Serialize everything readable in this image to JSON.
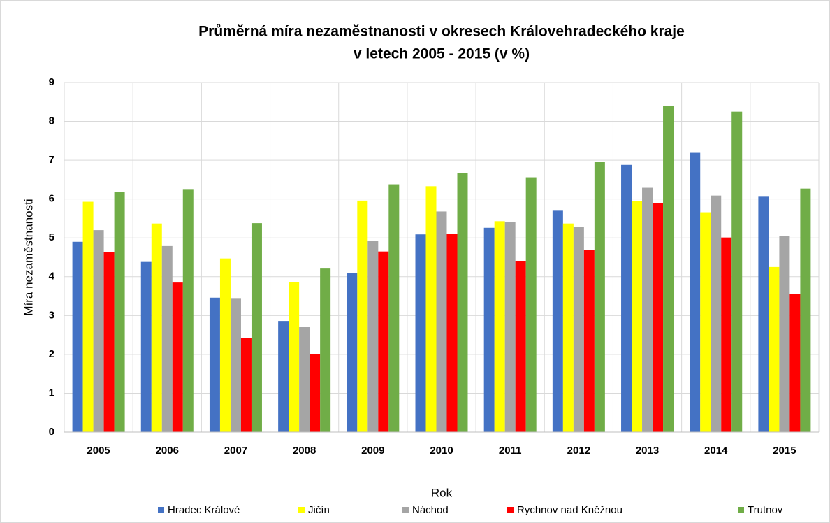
{
  "chart_data": {
    "type": "bar",
    "title": [
      "Průměrná míra nezaměstnanosti v okresech Královehradeckého kraje",
      "v letech 2005 - 2015 (v %)"
    ],
    "x_label": "Rok",
    "y_label": "Míra nezaměstnanosti",
    "categories": [
      "2005",
      "2006",
      "2007",
      "2008",
      "2009",
      "2010",
      "2011",
      "2012",
      "2013",
      "2014",
      "2015"
    ],
    "series": [
      {
        "name": "Hradec Králové",
        "color": "#4472c4",
        "values": [
          4.9,
          4.38,
          3.46,
          2.86,
          4.09,
          5.09,
          5.26,
          5.7,
          6.88,
          7.19,
          6.06
        ]
      },
      {
        "name": "Jičín",
        "color": "#ffff00",
        "values": [
          5.93,
          5.37,
          4.47,
          3.86,
          5.96,
          6.33,
          5.43,
          5.37,
          5.95,
          5.66,
          4.25
        ]
      },
      {
        "name": "Náchod",
        "color": "#a5a5a5",
        "values": [
          5.2,
          4.79,
          3.45,
          2.7,
          4.93,
          5.68,
          5.4,
          5.29,
          6.29,
          6.09,
          5.04
        ]
      },
      {
        "name": "Rychnov nad Kněžnou",
        "color": "#ff0000",
        "values": [
          4.63,
          3.85,
          2.43,
          2.0,
          4.65,
          5.11,
          4.41,
          4.68,
          5.9,
          5.01,
          3.55
        ]
      },
      {
        "name": "Trutnov",
        "color": "#70ad47",
        "values": [
          6.18,
          6.24,
          5.38,
          4.21,
          6.38,
          6.66,
          6.56,
          6.95,
          8.4,
          8.25,
          6.27
        ]
      }
    ],
    "ylim": [
      0,
      9
    ],
    "yticks": [
      0,
      1,
      2,
      3,
      4,
      5,
      6,
      7,
      8,
      9
    ],
    "grid": true,
    "legend": "bottom"
  }
}
